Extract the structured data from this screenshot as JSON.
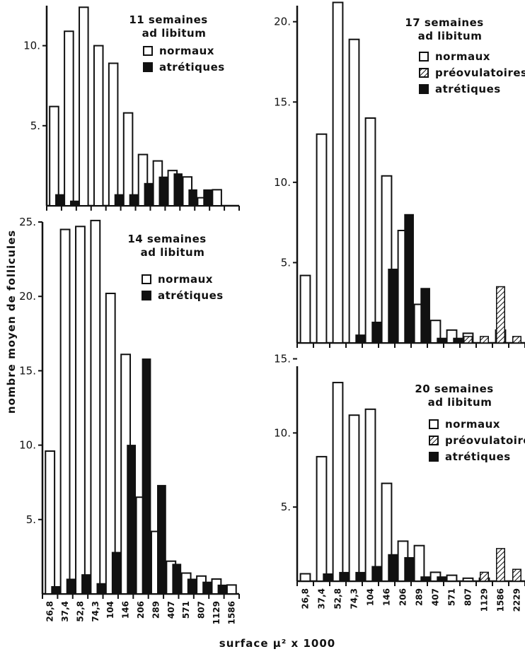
{
  "y_axis_label": "nombre moyen de follicules",
  "x_axis_label": "surface μ² x 1000",
  "x_ticks_left": [
    "26,8",
    "37,4",
    "52,8",
    "74,3",
    "104",
    "146",
    "206",
    "289",
    "407",
    "571",
    "807",
    "1129",
    "1586"
  ],
  "x_ticks_right": [
    "26,8",
    "37,4",
    "52,8",
    "74,3",
    "104",
    "146",
    "206",
    "289",
    "407",
    "571",
    "807",
    "1129",
    "1586",
    "2229"
  ],
  "legend_labels": {
    "normaux": "normaux",
    "preovulatoires": "préovulatoires",
    "atretiques": "atrétiques"
  },
  "chart_data": [
    {
      "type": "bar",
      "title_line1": "11 semaines",
      "title_line2": "ad libitum",
      "ylim": [
        0,
        12.5
      ],
      "yticks": [
        5,
        10
      ],
      "categories": [
        "26,8",
        "37,4",
        "52,8",
        "74,3",
        "104",
        "146",
        "206",
        "289",
        "407",
        "571",
        "807",
        "1129",
        "1586"
      ],
      "series": [
        {
          "name": "normaux",
          "values": [
            6.2,
            10.9,
            12.4,
            10.0,
            8.9,
            5.8,
            3.2,
            2.8,
            2.2,
            1.8,
            0.5,
            1.0,
            0
          ]
        },
        {
          "name": "atrétiques",
          "values": [
            0.7,
            0.3,
            0,
            0,
            0.7,
            0.7,
            1.4,
            1.8,
            2.0,
            1.0,
            1.0,
            0,
            0
          ]
        }
      ]
    },
    {
      "type": "bar",
      "title_line1": "17 semaines",
      "title_line2": "ad libitum",
      "ylim": [
        0,
        21
      ],
      "yticks": [
        5,
        10,
        15,
        20
      ],
      "categories": [
        "26,8",
        "37,4",
        "52,8",
        "74,3",
        "104",
        "146",
        "206",
        "289",
        "407",
        "571",
        "807",
        "1129",
        "1586",
        "2229"
      ],
      "series": [
        {
          "name": "normaux",
          "values": [
            4.2,
            13.0,
            21.2,
            18.9,
            14.0,
            10.4,
            7.0,
            2.4,
            1.4,
            0.8,
            0.6,
            0,
            0.8,
            0
          ]
        },
        {
          "name": "préovulatoires",
          "values": [
            0,
            0,
            0,
            0,
            0,
            0,
            0,
            0,
            0,
            0,
            0.4,
            0.4,
            3.5,
            0.4
          ]
        },
        {
          "name": "atrétiques",
          "values": [
            0,
            0,
            0,
            0.5,
            1.3,
            4.6,
            8.0,
            3.4,
            0.3,
            0.3,
            0,
            0,
            0,
            0
          ]
        }
      ]
    },
    {
      "type": "bar",
      "title_line1": "14 semaines",
      "title_line2": "ad libitum",
      "ylim": [
        0,
        25
      ],
      "yticks": [
        5,
        10,
        15,
        20,
        25
      ],
      "categories": [
        "26,8",
        "37,4",
        "52,8",
        "74,3",
        "104",
        "146",
        "206",
        "289",
        "407",
        "571",
        "807",
        "1129",
        "1586"
      ],
      "series": [
        {
          "name": "normaux",
          "values": [
            9.6,
            24.5,
            24.7,
            25.1,
            20.2,
            16.1,
            6.5,
            4.2,
            2.2,
            1.4,
            1.2,
            1.0,
            0.6
          ]
        },
        {
          "name": "atrétiques",
          "values": [
            0.5,
            1.0,
            1.3,
            0.7,
            2.8,
            10.0,
            15.8,
            7.3,
            2.0,
            1.0,
            0.8,
            0.6,
            0
          ]
        }
      ]
    },
    {
      "type": "bar",
      "title_line1": "20 semaines",
      "title_line2": "ad libitum",
      "ylim": [
        0,
        14.5
      ],
      "yticks": [
        5,
        10,
        15
      ],
      "categories": [
        "26,8",
        "37,4",
        "52,8",
        "74,3",
        "104",
        "146",
        "206",
        "289",
        "407",
        "571",
        "807",
        "1129",
        "1586",
        "2229"
      ],
      "series": [
        {
          "name": "normaux",
          "values": [
            0.5,
            8.4,
            13.4,
            11.2,
            11.6,
            6.6,
            2.7,
            2.4,
            0.6,
            0.4,
            0.2,
            0.2,
            0,
            0
          ]
        },
        {
          "name": "préovulatoires",
          "values": [
            0,
            0,
            0,
            0,
            0,
            0,
            0,
            0,
            0,
            0,
            0,
            0.6,
            2.2,
            0.8
          ]
        },
        {
          "name": "atrétiques",
          "values": [
            0,
            0.5,
            0.6,
            0.6,
            1.0,
            1.8,
            1.6,
            0.3,
            0.3,
            0,
            0,
            0,
            0,
            0
          ]
        }
      ]
    }
  ]
}
